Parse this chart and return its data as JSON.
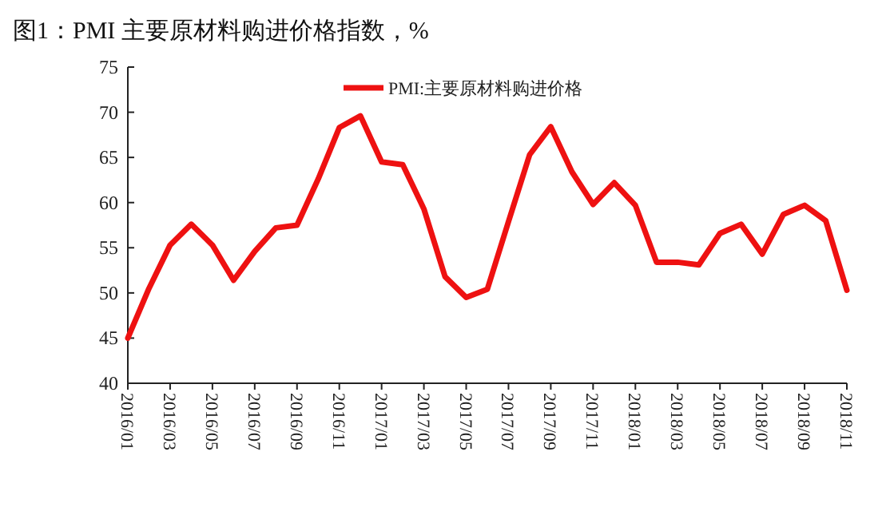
{
  "chart_data": {
    "type": "line",
    "title": "图1：PMI 主要原材料购进价格指数，%",
    "categories": [
      "2016/01",
      null,
      "2016/03",
      null,
      "2016/05",
      null,
      "2016/07",
      null,
      "2016/09",
      null,
      "2016/11",
      null,
      "2017/01",
      null,
      "2017/03",
      null,
      "2017/05",
      null,
      "2017/07",
      null,
      "2017/09",
      null,
      "2017/11",
      null,
      "2018/01",
      null,
      "2018/03",
      null,
      "2018/05",
      null,
      "2018/07",
      null,
      "2018/09",
      null,
      "2018/11"
    ],
    "series": [
      {
        "name": "PMI:主要原材料购进价格",
        "color": "#ee1111",
        "values": [
          45,
          50.5,
          55.3,
          57.6,
          55.3,
          51.4,
          54.6,
          57.2,
          57.5,
          62.6,
          68.3,
          69.6,
          64.5,
          64.2,
          59.3,
          51.8,
          49.5,
          50.4,
          57.9,
          65.3,
          68.4,
          63.4,
          59.8,
          62.2,
          59.7,
          53.4,
          53.4,
          53.1,
          56.6,
          57.6,
          54.3,
          58.7,
          59.7,
          58.0,
          50.3
        ]
      }
    ],
    "ylim": [
      40,
      75
    ],
    "yticks": [
      40,
      45,
      50,
      55,
      60,
      65,
      70,
      75
    ],
    "legend": "top",
    "grid": false
  }
}
